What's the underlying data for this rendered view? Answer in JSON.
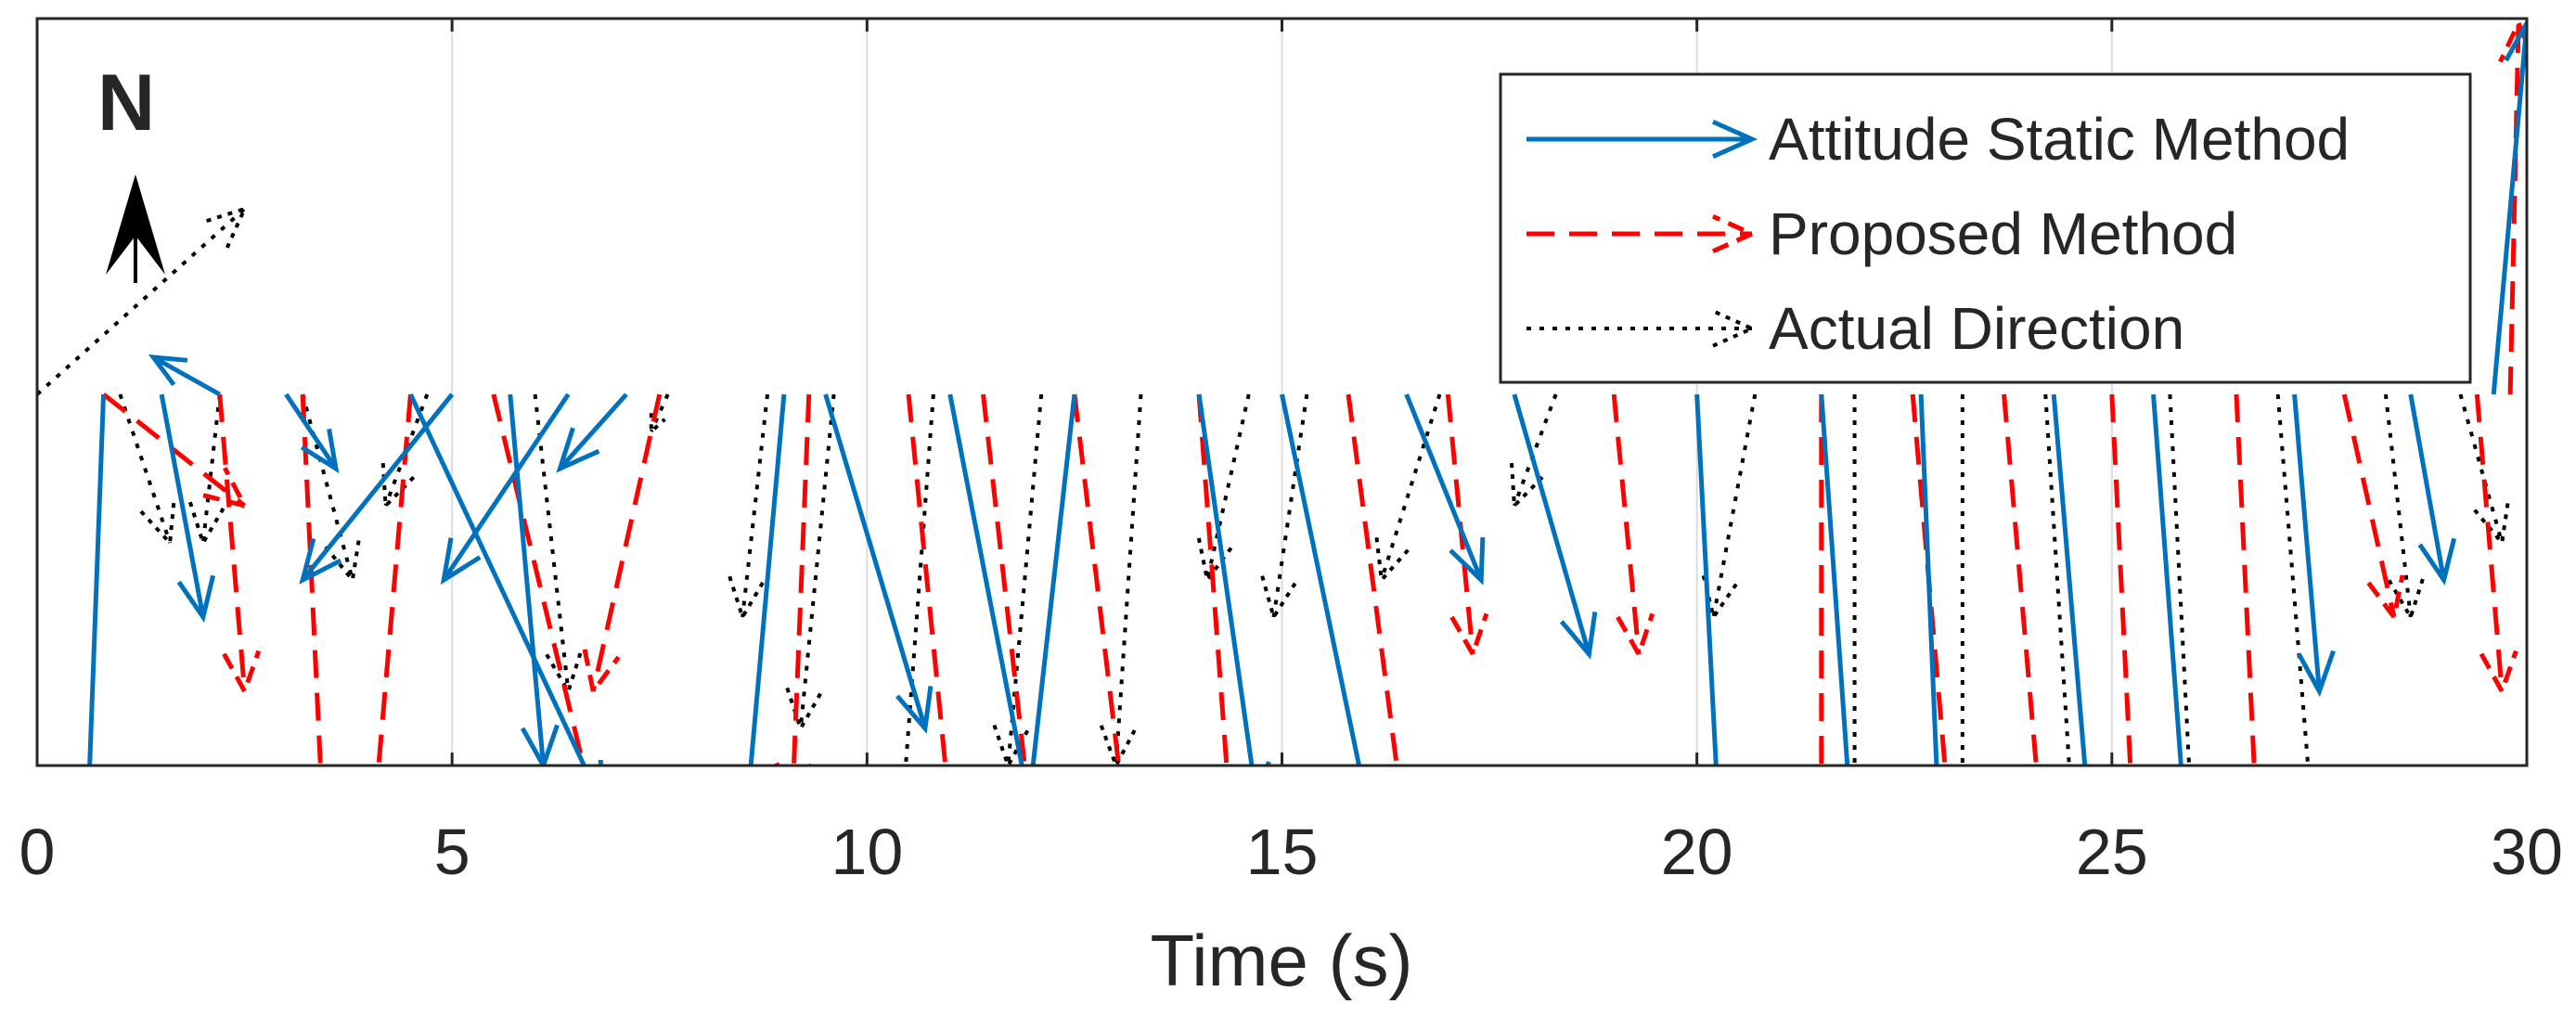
{
  "chart_data": {
    "type": "quiver",
    "title": "",
    "xlabel": "Time (s)",
    "ylabel": "",
    "xlim": [
      0,
      30
    ],
    "x_ticks": [
      0,
      5,
      10,
      15,
      20,
      25,
      30
    ],
    "x_tick_labels": [
      "0",
      "5",
      "10",
      "15",
      "20",
      "25",
      "30"
    ],
    "grid": "vertical",
    "north_label": "N",
    "legend_position": "top-right",
    "note": "Direction vectors are anchored on a common baseline at each sample time; dx is in seconds (time units) and dy is in baseline units (1.0 = baseline-to-axis-bottom distance, positive = north/up).",
    "series": [
      {
        "name": "Attitude Static Method",
        "color": "#0072BD",
        "style": "solid",
        "anchors": [
          {
            "t": 0.8,
            "dx": -0.2,
            "dy": -1.2
          },
          {
            "t": 1.5,
            "dx": 0.5,
            "dy": -0.6
          },
          {
            "t": 2.2,
            "dx": -0.8,
            "dy": 0.1
          },
          {
            "t": 3.0,
            "dx": 0.6,
            "dy": -0.2
          },
          {
            "t": 4.5,
            "dx": 2.3,
            "dy": -1.1
          },
          {
            "t": 5.0,
            "dx": -1.8,
            "dy": -0.5
          },
          {
            "t": 5.7,
            "dx": 0.4,
            "dy": -1.0
          },
          {
            "t": 6.4,
            "dx": -1.5,
            "dy": -0.5
          },
          {
            "t": 7.1,
            "dx": -0.8,
            "dy": -0.2
          },
          {
            "t": 9.0,
            "dx": -0.6,
            "dy": -1.5
          },
          {
            "t": 9.5,
            "dx": 1.2,
            "dy": -0.9
          },
          {
            "t": 11.0,
            "dx": 1.3,
            "dy": -1.5
          },
          {
            "t": 12.5,
            "dx": -0.6,
            "dy": -1.2
          },
          {
            "t": 14.0,
            "dx": 0.7,
            "dy": -1.1
          },
          {
            "t": 15.0,
            "dx": 1.3,
            "dy": -1.4
          },
          {
            "t": 16.5,
            "dx": 0.9,
            "dy": -0.5
          },
          {
            "t": 17.8,
            "dx": 0.9,
            "dy": -0.7
          },
          {
            "t": 20.0,
            "dx": 0.3,
            "dy": -1.3
          },
          {
            "t": 21.5,
            "dx": 0.5,
            "dy": -1.6
          },
          {
            "t": 22.7,
            "dx": 0.3,
            "dy": -1.6
          },
          {
            "t": 24.3,
            "dx": 0.6,
            "dy": -1.6
          },
          {
            "t": 25.5,
            "dx": 0.4,
            "dy": -1.2
          },
          {
            "t": 27.2,
            "dx": 0.3,
            "dy": -0.8
          },
          {
            "t": 28.6,
            "dx": 0.4,
            "dy": -0.5
          },
          {
            "t": 29.6,
            "dx": 0.4,
            "dy": 1.0
          }
        ]
      },
      {
        "name": "Proposed Method",
        "color": "#FF0000",
        "style": "dashed",
        "anchors": [
          {
            "t": 0.8,
            "dx": 1.7,
            "dy": -0.3
          },
          {
            "t": 2.2,
            "dx": 0.3,
            "dy": -0.8
          },
          {
            "t": 3.2,
            "dx": 0.3,
            "dy": -1.4
          },
          {
            "t": 4.5,
            "dx": -0.5,
            "dy": -1.3
          },
          {
            "t": 5.5,
            "dx": 1.3,
            "dy": -1.2
          },
          {
            "t": 7.5,
            "dx": -0.8,
            "dy": -0.8
          },
          {
            "t": 9.3,
            "dx": -0.2,
            "dy": -1.1
          },
          {
            "t": 10.5,
            "dx": 0.8,
            "dy": -1.8
          },
          {
            "t": 11.4,
            "dx": 0.8,
            "dy": -1.6
          },
          {
            "t": 12.5,
            "dx": 0.8,
            "dy": -1.5
          },
          {
            "t": 14.0,
            "dx": 0.4,
            "dy": -1.2
          },
          {
            "t": 15.8,
            "dx": 0.7,
            "dy": -1.2
          },
          {
            "t": 17.0,
            "dx": 0.3,
            "dy": -0.7
          },
          {
            "t": 19.0,
            "dx": 0.3,
            "dy": -0.7
          },
          {
            "t": 21.5,
            "dx": 0.0,
            "dy": -1.7
          },
          {
            "t": 22.6,
            "dx": 0.7,
            "dy": -1.8
          },
          {
            "t": 23.7,
            "dx": 0.7,
            "dy": -1.8
          },
          {
            "t": 25.0,
            "dx": 0.4,
            "dy": -1.8
          },
          {
            "t": 26.5,
            "dx": 0.3,
            "dy": -1.4
          },
          {
            "t": 27.8,
            "dx": 0.6,
            "dy": -0.6
          },
          {
            "t": 29.4,
            "dx": 0.3,
            "dy": -0.8
          },
          {
            "t": 29.8,
            "dx": 0.1,
            "dy": 1.0
          }
        ]
      },
      {
        "name": "Actual Direction",
        "color": "#000000",
        "style": "dotted",
        "anchors": [
          {
            "t": 0.0,
            "dx": 2.5,
            "dy": 0.5
          },
          {
            "t": 1.0,
            "dx": 0.6,
            "dy": -0.4
          },
          {
            "t": 2.2,
            "dx": -0.2,
            "dy": -0.4
          },
          {
            "t": 3.2,
            "dx": 0.6,
            "dy": -0.5
          },
          {
            "t": 4.7,
            "dx": -0.5,
            "dy": -0.3
          },
          {
            "t": 6.0,
            "dx": 0.4,
            "dy": -0.8
          },
          {
            "t": 7.6,
            "dx": -0.2,
            "dy": -0.1
          },
          {
            "t": 8.8,
            "dx": -0.3,
            "dy": -0.6
          },
          {
            "t": 9.6,
            "dx": -0.4,
            "dy": -0.9
          },
          {
            "t": 10.8,
            "dx": -0.4,
            "dy": -1.2
          },
          {
            "t": 12.1,
            "dx": -0.4,
            "dy": -1.0
          },
          {
            "t": 13.3,
            "dx": -0.3,
            "dy": -1.0
          },
          {
            "t": 14.6,
            "dx": -0.5,
            "dy": -0.5
          },
          {
            "t": 15.3,
            "dx": -0.4,
            "dy": -0.6
          },
          {
            "t": 16.9,
            "dx": -0.7,
            "dy": -0.5
          },
          {
            "t": 18.3,
            "dx": -0.5,
            "dy": -0.3
          },
          {
            "t": 20.7,
            "dx": -0.5,
            "dy": -0.6
          },
          {
            "t": 21.9,
            "dx": 0.0,
            "dy": -1.2
          },
          {
            "t": 23.2,
            "dx": 0.0,
            "dy": -1.3
          },
          {
            "t": 24.2,
            "dx": 0.4,
            "dy": -1.4
          },
          {
            "t": 25.7,
            "dx": 0.3,
            "dy": -1.3
          },
          {
            "t": 27.0,
            "dx": 0.4,
            "dy": -1.1
          },
          {
            "t": 28.3,
            "dx": 0.3,
            "dy": -0.6
          },
          {
            "t": 29.2,
            "dx": 0.5,
            "dy": -0.4
          }
        ]
      }
    ]
  }
}
